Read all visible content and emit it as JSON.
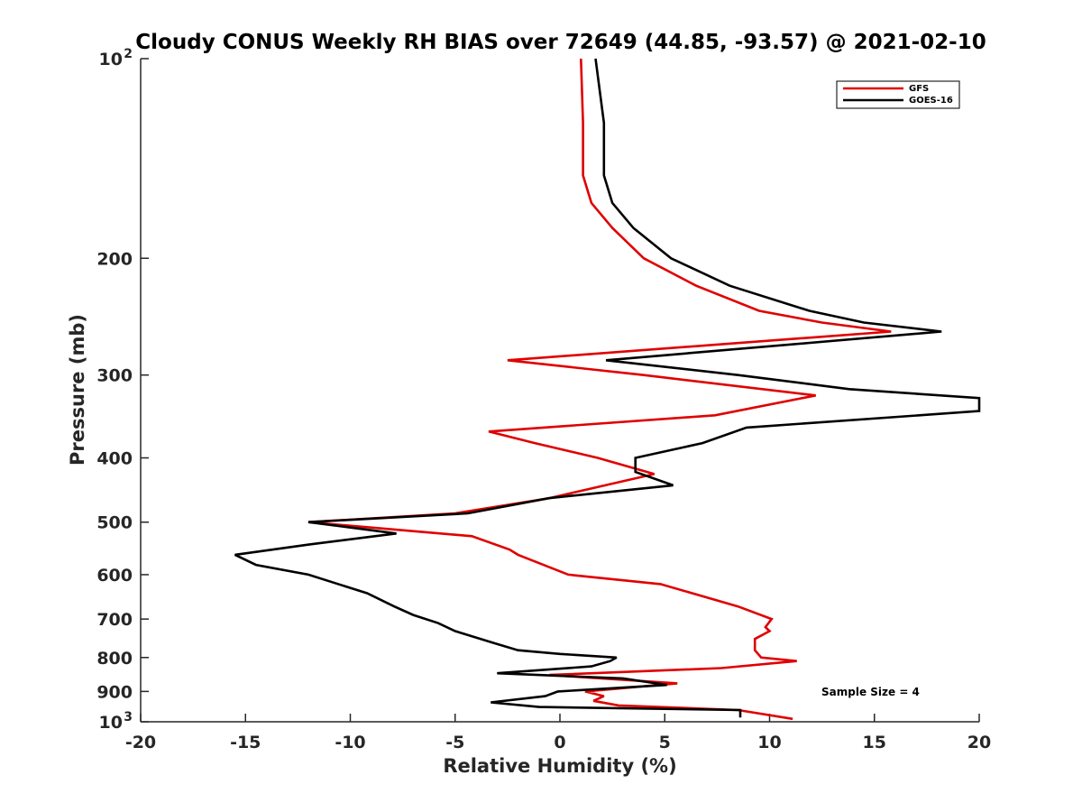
{
  "chart_data": {
    "type": "line",
    "title": "Cloudy CONUS Weekly RH BIAS over 72649 (44.85, -93.57) @ 2021-02-10",
    "xlabel": "Relative Humidity (%)",
    "ylabel": "Pressure (mb)",
    "xlim": [
      -20,
      20
    ],
    "ylim": [
      100,
      1000
    ],
    "y_scale": "log",
    "y_reversed": true,
    "grid": false,
    "legend_position": "top-right",
    "x_ticks": [
      "-20",
      "-15",
      "-10",
      "-5",
      "0",
      "5",
      "10",
      "15",
      "20"
    ],
    "y_ticks": [
      {
        "value": 100,
        "base": "10",
        "exp": "2"
      },
      {
        "value": 200,
        "label": "200"
      },
      {
        "value": 300,
        "label": "300"
      },
      {
        "value": 400,
        "label": "400"
      },
      {
        "value": 500,
        "label": "500"
      },
      {
        "value": 600,
        "label": "600"
      },
      {
        "value": 700,
        "label": "700"
      },
      {
        "value": 800,
        "label": "800"
      },
      {
        "value": 900,
        "label": "900"
      },
      {
        "value": 1000,
        "base": "10",
        "exp": "3"
      }
    ],
    "series": [
      {
        "name": "GFS",
        "color": "#e00000",
        "points": [
          [
            1.0,
            100
          ],
          [
            1.1,
            125
          ],
          [
            1.1,
            150
          ],
          [
            1.5,
            165
          ],
          [
            2.5,
            180
          ],
          [
            4.0,
            200
          ],
          [
            6.5,
            220
          ],
          [
            9.5,
            240
          ],
          [
            12.5,
            250
          ],
          [
            15.8,
            258
          ],
          [
            -2.5,
            285
          ],
          [
            4.0,
            300
          ],
          [
            12.2,
            322
          ],
          [
            7.4,
            345
          ],
          [
            -3.4,
            365
          ],
          [
            -1.2,
            380
          ],
          [
            1.8,
            400
          ],
          [
            4.5,
            423
          ],
          [
            3.8,
            428
          ],
          [
            -0.5,
            460
          ],
          [
            -5.0,
            485
          ],
          [
            -12.0,
            500
          ],
          [
            -4.2,
            525
          ],
          [
            -2.4,
            550
          ],
          [
            -2.0,
            560
          ],
          [
            0.4,
            600
          ],
          [
            4.8,
            620
          ],
          [
            8.5,
            670
          ],
          [
            10.1,
            700
          ],
          [
            9.8,
            720
          ],
          [
            10.0,
            730
          ],
          [
            9.3,
            750
          ],
          [
            9.3,
            780
          ],
          [
            9.6,
            800
          ],
          [
            11.3,
            810
          ],
          [
            7.7,
            830
          ],
          [
            -0.5,
            850
          ],
          [
            5.6,
            875
          ],
          [
            1.2,
            900
          ],
          [
            2.1,
            915
          ],
          [
            1.6,
            930
          ],
          [
            2.8,
            945
          ],
          [
            8.5,
            960
          ],
          [
            11.1,
            990
          ]
        ]
      },
      {
        "name": "GOES-16",
        "color": "#000000",
        "points": [
          [
            1.7,
            100
          ],
          [
            2.1,
            125
          ],
          [
            2.1,
            150
          ],
          [
            2.5,
            165
          ],
          [
            3.5,
            180
          ],
          [
            5.3,
            200
          ],
          [
            8.1,
            220
          ],
          [
            11.9,
            240
          ],
          [
            14.5,
            250
          ],
          [
            18.2,
            258
          ],
          [
            2.2,
            285
          ],
          [
            8.5,
            300
          ],
          [
            13.8,
            315
          ],
          [
            20.2,
            325
          ],
          [
            20.2,
            340
          ],
          [
            8.9,
            360
          ],
          [
            6.8,
            380
          ],
          [
            3.6,
            400
          ],
          [
            3.6,
            420
          ],
          [
            5.4,
            440
          ],
          [
            -0.5,
            460
          ],
          [
            -4.4,
            485
          ],
          [
            -12.0,
            500
          ],
          [
            -7.8,
            520
          ],
          [
            -11.9,
            540
          ],
          [
            -15.5,
            560
          ],
          [
            -14.5,
            580
          ],
          [
            -12.0,
            600
          ],
          [
            -9.2,
            640
          ],
          [
            -7.9,
            670
          ],
          [
            -7.0,
            690
          ],
          [
            -5.8,
            710
          ],
          [
            -5.0,
            730
          ],
          [
            -3.2,
            760
          ],
          [
            -2.0,
            780
          ],
          [
            0.0,
            790
          ],
          [
            2.7,
            800
          ],
          [
            2.4,
            810
          ],
          [
            1.5,
            825
          ],
          [
            -3.0,
            845
          ],
          [
            3.0,
            860
          ],
          [
            5.1,
            880
          ],
          [
            -0.1,
            900
          ],
          [
            -0.7,
            915
          ],
          [
            -3.3,
            935
          ],
          [
            -1.0,
            950
          ],
          [
            8.6,
            960
          ],
          [
            8.6,
            985
          ]
        ]
      }
    ],
    "annotations": [
      {
        "text": "Sample Size = 4"
      }
    ]
  }
}
